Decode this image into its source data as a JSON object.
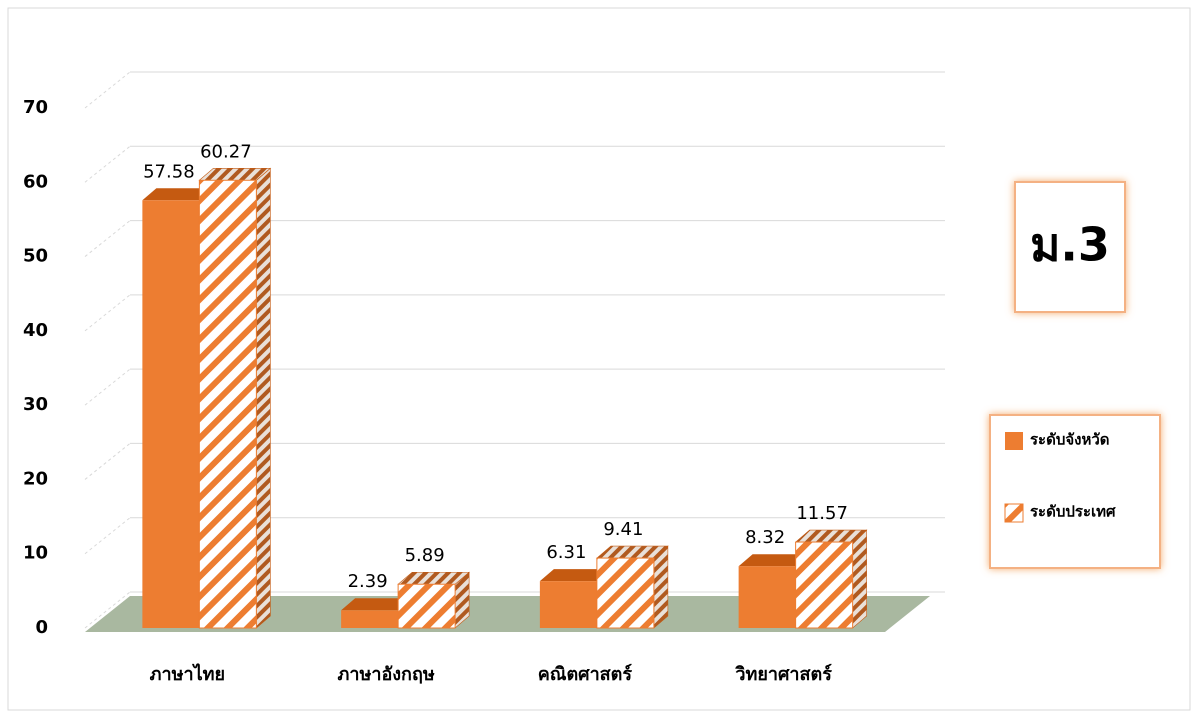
{
  "chart_data": {
    "type": "bar3d",
    "categories": [
      "ภาษาไทย",
      "ภาษาอังกฤษ",
      "คณิตศาสตร์",
      "วิทยาศาสตร์"
    ],
    "series": [
      {
        "name": "ระดับจังหวัด",
        "color": "#ed7d31",
        "hatch": false,
        "values": [
          57.58,
          2.39,
          6.31,
          8.32
        ]
      },
      {
        "name": "ระดับประเทศ",
        "color": "#ed7d31",
        "hatch": true,
        "values": [
          60.27,
          5.89,
          9.41,
          11.57
        ]
      }
    ],
    "ylim": [
      0,
      70
    ],
    "yticks": [
      0,
      10,
      20,
      30,
      40,
      50,
      60,
      70
    ],
    "grid": true,
    "legend": "right",
    "annotation": "ม.3"
  }
}
